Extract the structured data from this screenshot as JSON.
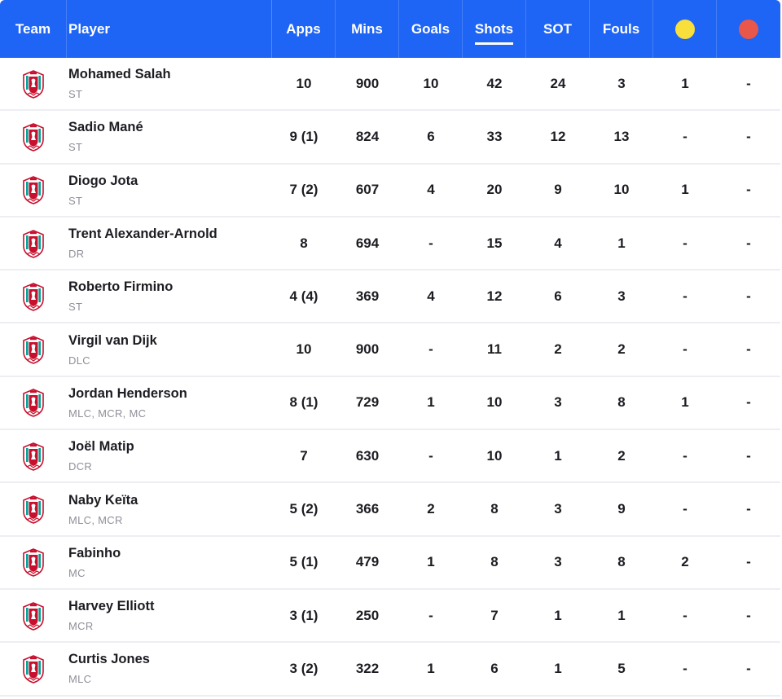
{
  "header": {
    "team": "Team",
    "player": "Player",
    "apps": "Apps",
    "mins": "Mins",
    "goals": "Goals",
    "shots": "Shots",
    "sot": "SOT",
    "fouls": "Fouls",
    "yellow_icon": "yellow-card-icon",
    "red_icon": "red-card-icon",
    "active_sort": "Shots"
  },
  "colors": {
    "header_bg": "#1e64f5",
    "yellow_card": "#f8df3c",
    "red_card": "#e8574a",
    "crest_red": "#c8102e",
    "crest_green": "#00a398"
  },
  "team_icon": "liverpool-crest-icon",
  "players": [
    {
      "name": "Mohamed Salah",
      "pos": "ST",
      "apps": "10",
      "mins": "900",
      "goals": "10",
      "shots": "42",
      "sot": "24",
      "fouls": "3",
      "yellow": "1",
      "red": "-"
    },
    {
      "name": "Sadio Mané",
      "pos": "ST",
      "apps": "9 (1)",
      "mins": "824",
      "goals": "6",
      "shots": "33",
      "sot": "12",
      "fouls": "13",
      "yellow": "-",
      "red": "-"
    },
    {
      "name": "Diogo Jota",
      "pos": "ST",
      "apps": "7 (2)",
      "mins": "607",
      "goals": "4",
      "shots": "20",
      "sot": "9",
      "fouls": "10",
      "yellow": "1",
      "red": "-"
    },
    {
      "name": "Trent Alexander-Arnold",
      "pos": "DR",
      "apps": "8",
      "mins": "694",
      "goals": "-",
      "shots": "15",
      "sot": "4",
      "fouls": "1",
      "yellow": "-",
      "red": "-"
    },
    {
      "name": "Roberto Firmino",
      "pos": "ST",
      "apps": "4 (4)",
      "mins": "369",
      "goals": "4",
      "shots": "12",
      "sot": "6",
      "fouls": "3",
      "yellow": "-",
      "red": "-"
    },
    {
      "name": "Virgil van Dijk",
      "pos": "DLC",
      "apps": "10",
      "mins": "900",
      "goals": "-",
      "shots": "11",
      "sot": "2",
      "fouls": "2",
      "yellow": "-",
      "red": "-"
    },
    {
      "name": "Jordan Henderson",
      "pos": "MLC, MCR, MC",
      "apps": "8 (1)",
      "mins": "729",
      "goals": "1",
      "shots": "10",
      "sot": "3",
      "fouls": "8",
      "yellow": "1",
      "red": "-"
    },
    {
      "name": "Joël Matip",
      "pos": "DCR",
      "apps": "7",
      "mins": "630",
      "goals": "-",
      "shots": "10",
      "sot": "1",
      "fouls": "2",
      "yellow": "-",
      "red": "-"
    },
    {
      "name": "Naby Keïta",
      "pos": "MLC, MCR",
      "apps": "5 (2)",
      "mins": "366",
      "goals": "2",
      "shots": "8",
      "sot": "3",
      "fouls": "9",
      "yellow": "-",
      "red": "-"
    },
    {
      "name": "Fabinho",
      "pos": "MC",
      "apps": "5 (1)",
      "mins": "479",
      "goals": "1",
      "shots": "8",
      "sot": "3",
      "fouls": "8",
      "yellow": "2",
      "red": "-"
    },
    {
      "name": "Harvey Elliott",
      "pos": "MCR",
      "apps": "3 (1)",
      "mins": "250",
      "goals": "-",
      "shots": "7",
      "sot": "1",
      "fouls": "1",
      "yellow": "-",
      "red": "-"
    },
    {
      "name": "Curtis Jones",
      "pos": "MLC",
      "apps": "3 (2)",
      "mins": "322",
      "goals": "1",
      "shots": "6",
      "sot": "1",
      "fouls": "5",
      "yellow": "-",
      "red": "-"
    }
  ]
}
